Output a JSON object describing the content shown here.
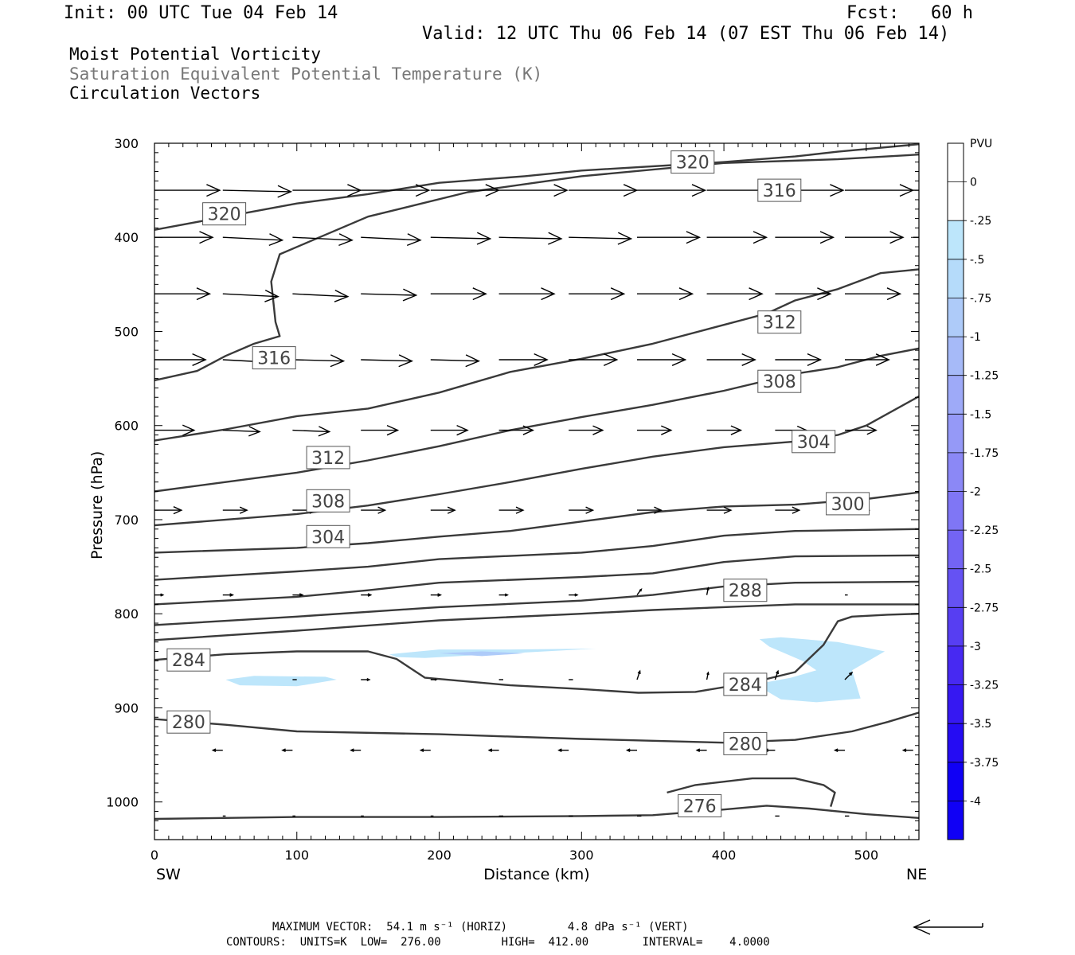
{
  "header": {
    "init": "Init: 00 UTC Tue 04 Feb 14",
    "fcst": "Fcst:   60 h",
    "valid": "Valid: 12 UTC Thu 06 Feb 14 (07 EST Thu 06 Feb 14)"
  },
  "titles": {
    "line1": "Moist Potential Vorticity",
    "line2": "Saturation Equivalent Potential Temperature (K)",
    "line3": "Circulation Vectors"
  },
  "footer": {
    "line1": "MAXIMUM VECTOR:  54.1 m s⁻¹ (HORIZ)         4.8 dPa s⁻¹ (VERT)",
    "line2": "CONTOURS:  UNITS=K  LOW=  276.00         HIGH=  412.00        INTERVAL=    4.0000"
  },
  "chart_data": {
    "type": "contour-cross-section",
    "xlabel": "Distance (km)",
    "ylabel": "Pressure (hPa)",
    "x_left_label": "SW",
    "x_right_label": "NE",
    "xlim": [
      0,
      537
    ],
    "ylim": [
      1040,
      300
    ],
    "x_ticks": [
      0,
      100,
      200,
      300,
      400,
      500
    ],
    "y_ticks": [
      300,
      400,
      500,
      600,
      700,
      800,
      900,
      1000
    ],
    "colorbar": {
      "title": "PVU",
      "labels": [
        "0",
        "-.25",
        "-.5",
        "-.75",
        "-1",
        "-1.25",
        "-1.5",
        "-1.75",
        "-2",
        "-2.25",
        "-2.5",
        "-2.75",
        "-3",
        "-3.25",
        "-3.5",
        "-3.75",
        "-4"
      ],
      "colors": [
        "#ffffff",
        "#ffffff",
        "#bde6fb",
        "#b5dbfa",
        "#aecbf9",
        "#a6baf8",
        "#9eaaf8",
        "#9599f7",
        "#8b88f6",
        "#7f76f5",
        "#7364f4",
        "#6552f3",
        "#573ef2",
        "#4729f2",
        "#3618f2",
        "#250cf3",
        "#1000f5"
      ]
    },
    "contours": [
      {
        "value": 276,
        "points": [
          [
            0,
            1018
          ],
          [
            100,
            1016
          ],
          [
            200,
            1016
          ],
          [
            300,
            1015
          ],
          [
            350,
            1014
          ],
          [
            400,
            1008
          ],
          [
            430,
            1004
          ],
          [
            460,
            1007
          ],
          [
            500,
            1013
          ],
          [
            537,
            1017
          ]
        ]
      },
      {
        "value": 276,
        "points": [
          [
            360,
            990
          ],
          [
            380,
            982
          ],
          [
            420,
            975
          ],
          [
            450,
            975
          ],
          [
            470,
            982
          ],
          [
            478,
            990
          ],
          [
            475,
            1005
          ]
        ]
      },
      {
        "value": 280,
        "points": [
          [
            0,
            912
          ],
          [
            50,
            918
          ],
          [
            100,
            925
          ],
          [
            200,
            928
          ],
          [
            300,
            933
          ],
          [
            350,
            935
          ],
          [
            400,
            937
          ],
          [
            450,
            934
          ],
          [
            490,
            925
          ],
          [
            515,
            915
          ],
          [
            537,
            905
          ]
        ]
      },
      {
        "value": 284,
        "points": [
          [
            0,
            849
          ],
          [
            50,
            843
          ],
          [
            100,
            840
          ],
          [
            150,
            840
          ],
          [
            170,
            848
          ],
          [
            190,
            868
          ],
          [
            250,
            876
          ],
          [
            300,
            880
          ],
          [
            340,
            884
          ],
          [
            380,
            883
          ],
          [
            420,
            873
          ],
          [
            450,
            862
          ],
          [
            470,
            833
          ],
          [
            480,
            808
          ],
          [
            490,
            803
          ],
          [
            515,
            801
          ],
          [
            537,
            800
          ]
        ]
      },
      {
        "value": 288,
        "points": [
          [
            0,
            828
          ],
          [
            100,
            818
          ],
          [
            200,
            807
          ],
          [
            300,
            800
          ],
          [
            350,
            796
          ],
          [
            400,
            793
          ],
          [
            450,
            790
          ],
          [
            537,
            790
          ]
        ]
      },
      {
        "value": 288,
        "points": [
          [
            0,
            812
          ],
          [
            100,
            803
          ],
          [
            200,
            793
          ],
          [
            300,
            786
          ],
          [
            350,
            780
          ],
          [
            400,
            771
          ],
          [
            450,
            767
          ],
          [
            537,
            766
          ]
        ]
      },
      {
        "value": 292,
        "points": [
          [
            0,
            790
          ],
          [
            100,
            782
          ],
          [
            150,
            775
          ],
          [
            200,
            767
          ],
          [
            300,
            761
          ],
          [
            350,
            757
          ],
          [
            400,
            745
          ],
          [
            450,
            739
          ],
          [
            537,
            738
          ]
        ]
      },
      {
        "value": 296,
        "points": [
          [
            0,
            764
          ],
          [
            100,
            755
          ],
          [
            150,
            750
          ],
          [
            200,
            742
          ],
          [
            300,
            735
          ],
          [
            350,
            728
          ],
          [
            400,
            717
          ],
          [
            450,
            712
          ],
          [
            537,
            710
          ]
        ]
      },
      {
        "value": 300,
        "points": [
          [
            0,
            735
          ],
          [
            100,
            730
          ],
          [
            150,
            725
          ],
          [
            200,
            718
          ],
          [
            250,
            712
          ],
          [
            300,
            702
          ],
          [
            350,
            692
          ],
          [
            400,
            686
          ],
          [
            450,
            684
          ],
          [
            500,
            678
          ],
          [
            537,
            671
          ]
        ]
      },
      {
        "value": 304,
        "points": [
          [
            0,
            706
          ],
          [
            100,
            694
          ],
          [
            150,
            685
          ],
          [
            200,
            673
          ],
          [
            250,
            660
          ],
          [
            300,
            646
          ],
          [
            350,
            633
          ],
          [
            400,
            623
          ],
          [
            450,
            617
          ],
          [
            480,
            610
          ],
          [
            500,
            600
          ],
          [
            537,
            569
          ]
        ]
      },
      {
        "value": 308,
        "points": [
          [
            0,
            670
          ],
          [
            50,
            660
          ],
          [
            100,
            650
          ],
          [
            150,
            637
          ],
          [
            200,
            622
          ],
          [
            250,
            605
          ],
          [
            300,
            591
          ],
          [
            350,
            578
          ],
          [
            400,
            563
          ],
          [
            450,
            545
          ],
          [
            480,
            538
          ],
          [
            510,
            526
          ],
          [
            537,
            518
          ]
        ]
      },
      {
        "value": 312,
        "points": [
          [
            0,
            616
          ],
          [
            50,
            604
          ],
          [
            100,
            590
          ],
          [
            150,
            582
          ],
          [
            200,
            565
          ],
          [
            250,
            543
          ],
          [
            300,
            529
          ],
          [
            350,
            513
          ],
          [
            400,
            493
          ],
          [
            430,
            481
          ],
          [
            450,
            467
          ],
          [
            480,
            455
          ],
          [
            510,
            438
          ],
          [
            537,
            434
          ]
        ]
      },
      {
        "value": 316,
        "points": [
          [
            0,
            552
          ],
          [
            30,
            542
          ],
          [
            50,
            526
          ],
          [
            70,
            513
          ],
          [
            88,
            505
          ],
          [
            85,
            490
          ],
          [
            82,
            447
          ],
          [
            88,
            418
          ],
          [
            108,
            405
          ],
          [
            150,
            378
          ],
          [
            220,
            352
          ],
          [
            300,
            335
          ],
          [
            400,
            321
          ],
          [
            480,
            317
          ],
          [
            537,
            312
          ]
        ]
      },
      {
        "value": 320,
        "points": [
          [
            0,
            392
          ],
          [
            50,
            378
          ],
          [
            100,
            364
          ],
          [
            150,
            354
          ],
          [
            200,
            342
          ],
          [
            260,
            335
          ],
          [
            300,
            329
          ],
          [
            400,
            320
          ],
          [
            450,
            314
          ],
          [
            480,
            309
          ],
          [
            537,
            301
          ]
        ]
      }
    ],
    "contour_labels": [
      {
        "text": "320",
        "x": 378,
        "y": 320
      },
      {
        "text": "316",
        "x": 439,
        "y": 350
      },
      {
        "text": "320",
        "x": 49,
        "y": 375
      },
      {
        "text": "312",
        "x": 439,
        "y": 490
      },
      {
        "text": "316",
        "x": 84,
        "y": 528
      },
      {
        "text": "308",
        "x": 439,
        "y": 553
      },
      {
        "text": "304",
        "x": 463,
        "y": 617
      },
      {
        "text": "312",
        "x": 122,
        "y": 634
      },
      {
        "text": "308",
        "x": 122,
        "y": 680
      },
      {
        "text": "300",
        "x": 487,
        "y": 683
      },
      {
        "text": "304",
        "x": 122,
        "y": 718
      },
      {
        "text": "288",
        "x": 415,
        "y": 775
      },
      {
        "text": "284",
        "x": 24,
        "y": 849
      },
      {
        "text": "284",
        "x": 415,
        "y": 875
      },
      {
        "text": "280",
        "x": 24,
        "y": 915
      },
      {
        "text": "280",
        "x": 415,
        "y": 938
      },
      {
        "text": "276",
        "x": 383,
        "y": 1004
      }
    ],
    "pv_regions": [
      {
        "color": "#bde6fb",
        "points": [
          [
            165,
            843
          ],
          [
            200,
            838
          ],
          [
            250,
            838
          ],
          [
            310,
            837
          ],
          [
            250,
            842
          ],
          [
            190,
            847
          ],
          [
            170,
            846
          ]
        ]
      },
      {
        "color": "#aecbf9",
        "points": [
          [
            200,
            842
          ],
          [
            230,
            840
          ],
          [
            260,
            842
          ],
          [
            230,
            845
          ]
        ]
      },
      {
        "color": "#bde6fb",
        "points": [
          [
            50,
            870
          ],
          [
            70,
            866
          ],
          [
            120,
            867
          ],
          [
            128,
            870
          ],
          [
            100,
            877
          ],
          [
            60,
            876
          ]
        ]
      },
      {
        "color": "#bde6fb",
        "points": [
          [
            425,
            827
          ],
          [
            440,
            825
          ],
          [
            480,
            830
          ],
          [
            513,
            840
          ],
          [
            490,
            860
          ],
          [
            496,
            890
          ],
          [
            465,
            894
          ],
          [
            440,
            891
          ],
          [
            422,
            875
          ],
          [
            447,
            868
          ],
          [
            465,
            860
          ],
          [
            455,
            850
          ],
          [
            432,
            835
          ]
        ]
      }
    ],
    "vectors": {
      "levels": [
        350,
        400,
        460,
        530,
        605,
        690,
        780,
        870,
        945,
        1015
      ],
      "x": [
        0,
        48,
        97,
        145,
        194,
        242,
        291,
        339,
        388,
        436,
        485,
        533
      ],
      "u": [
        [
          46,
          48,
          48,
          48,
          48,
          48,
          48,
          48,
          48,
          48,
          48,
          48
        ],
        [
          41,
          42,
          42,
          42,
          42,
          44,
          44,
          44,
          42,
          41,
          41,
          40
        ],
        [
          39,
          39,
          39,
          39,
          39,
          39,
          39,
          39,
          39,
          39,
          39,
          39
        ],
        [
          36,
          36,
          36,
          36,
          34,
          34,
          34,
          34,
          34,
          32,
          31,
          30
        ],
        [
          28,
          26,
          26,
          26,
          26,
          24,
          24,
          24,
          24,
          22,
          22,
          20
        ],
        [
          19,
          17,
          17,
          17,
          17,
          17,
          17,
          17,
          17,
          17,
          17,
          0
        ],
        [
          6,
          7,
          7,
          7,
          7,
          6,
          6,
          3,
          1,
          0,
          2,
          0
        ],
        [
          0,
          0,
          3,
          6,
          4,
          3,
          3,
          2,
          1,
          2,
          5,
          0
        ],
        [
          -7,
          -7,
          -7,
          -7,
          -7,
          -7,
          -7,
          -7,
          -7,
          -7,
          -7,
          -7
        ],
        [
          0,
          2,
          2,
          2,
          2,
          3,
          3,
          3,
          3,
          3,
          3,
          0
        ]
      ],
      "w": [
        [
          0,
          -1,
          0,
          0,
          0,
          0,
          0,
          0,
          0,
          0,
          0,
          0
        ],
        [
          0,
          -2,
          -2,
          -2,
          -1,
          -1,
          -1,
          0,
          0,
          0,
          0,
          0
        ],
        [
          0,
          -2,
          -2,
          -1,
          0,
          0,
          0,
          0,
          0,
          0,
          0,
          0
        ],
        [
          0,
          -2,
          -1,
          -1,
          -1,
          0,
          0,
          0,
          0,
          0,
          0,
          0
        ],
        [
          0,
          -1,
          -1,
          0,
          0,
          0,
          0,
          0,
          0,
          0,
          0,
          0
        ],
        [
          0,
          0,
          0,
          0,
          0,
          0,
          0,
          0,
          0,
          0,
          0,
          0
        ],
        [
          0,
          0,
          0,
          0,
          0,
          0,
          0,
          4,
          5,
          0,
          0,
          0
        ],
        [
          0,
          0,
          0,
          0,
          0,
          0,
          0,
          6,
          5,
          6,
          5,
          0
        ],
        [
          0,
          0,
          0,
          0,
          0,
          0,
          0,
          0,
          0,
          0,
          0,
          0
        ],
        [
          0,
          0,
          0,
          0,
          0,
          0,
          0,
          0,
          0,
          0,
          0,
          0
        ]
      ]
    }
  }
}
